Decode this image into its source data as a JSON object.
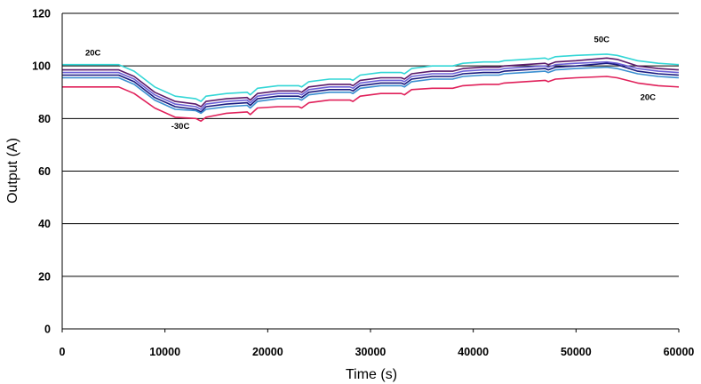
{
  "chart_data": {
    "type": "line",
    "title": "",
    "xlabel": "Time (s)",
    "ylabel": "Output (A)",
    "xlim": [
      0,
      60000
    ],
    "ylim": [
      0,
      120
    ],
    "x_ticks": [
      0,
      10000,
      20000,
      30000,
      40000,
      50000,
      60000
    ],
    "y_ticks": [
      0,
      20,
      40,
      60,
      80,
      100,
      120
    ],
    "grid": "horizontal",
    "legend": "none",
    "annotations": [
      {
        "text": "20C",
        "x": 3000,
        "y": 104
      },
      {
        "text": "-30C",
        "x": 11500,
        "y": 76
      },
      {
        "text": "50C",
        "x": 52500,
        "y": 109
      },
      {
        "text": "20C",
        "x": 57000,
        "y": 87
      }
    ],
    "series": [
      {
        "color": "#33d6d6",
        "points": [
          [
            0,
            100.5
          ],
          [
            5500,
            100.5
          ],
          [
            7000,
            98
          ],
          [
            9000,
            92
          ],
          [
            11000,
            88.5
          ],
          [
            13000,
            87.5
          ],
          [
            13500,
            86.5
          ],
          [
            14000,
            88.5
          ],
          [
            16000,
            89.5
          ],
          [
            18000,
            90
          ],
          [
            18300,
            89
          ],
          [
            19000,
            91.5
          ],
          [
            21000,
            92.5
          ],
          [
            23000,
            92.5
          ],
          [
            23300,
            92
          ],
          [
            24000,
            94
          ],
          [
            26000,
            95
          ],
          [
            28000,
            95
          ],
          [
            28300,
            94.5
          ],
          [
            29000,
            96.5
          ],
          [
            31000,
            97.5
          ],
          [
            33000,
            97.5
          ],
          [
            33300,
            97
          ],
          [
            34000,
            99
          ],
          [
            36000,
            100
          ],
          [
            38000,
            100
          ],
          [
            39000,
            101
          ],
          [
            41000,
            101.5
          ],
          [
            42500,
            101.5
          ],
          [
            43000,
            102
          ],
          [
            45000,
            102.5
          ],
          [
            47000,
            103
          ],
          [
            47300,
            102.5
          ],
          [
            48000,
            103.5
          ],
          [
            50000,
            104
          ],
          [
            53000,
            104.5
          ],
          [
            54000,
            104
          ],
          [
            56000,
            102
          ],
          [
            58000,
            101
          ],
          [
            60000,
            100.5
          ]
        ]
      },
      {
        "color": "#5a1a6a",
        "points": [
          [
            0,
            98.5
          ],
          [
            5500,
            98.5
          ],
          [
            7000,
            96
          ],
          [
            9000,
            90
          ],
          [
            11000,
            86.5
          ],
          [
            13000,
            85.5
          ],
          [
            13500,
            84.5
          ],
          [
            14000,
            86.5
          ],
          [
            16000,
            87.5
          ],
          [
            18000,
            88
          ],
          [
            18300,
            87
          ],
          [
            19000,
            89.5
          ],
          [
            21000,
            90.5
          ],
          [
            23000,
            90.5
          ],
          [
            23300,
            90
          ],
          [
            24000,
            92
          ],
          [
            26000,
            93
          ],
          [
            28000,
            93
          ],
          [
            28300,
            92.5
          ],
          [
            29000,
            94.5
          ],
          [
            31000,
            95.5
          ],
          [
            33000,
            95.5
          ],
          [
            33300,
            95
          ],
          [
            34000,
            97
          ],
          [
            36000,
            98
          ],
          [
            38000,
            98
          ],
          [
            39000,
            99
          ],
          [
            41000,
            99.5
          ],
          [
            42500,
            99.5
          ],
          [
            43000,
            100
          ],
          [
            45000,
            100.5
          ],
          [
            47000,
            101
          ],
          [
            47300,
            100.5
          ],
          [
            48000,
            101.5
          ],
          [
            50000,
            102
          ],
          [
            53000,
            103
          ],
          [
            54000,
            102.5
          ],
          [
            56000,
            100
          ],
          [
            58000,
            99
          ],
          [
            60000,
            98.5
          ]
        ]
      },
      {
        "color": "#6b5fd6",
        "points": [
          [
            0,
            97.5
          ],
          [
            5500,
            97.5
          ],
          [
            7000,
            95
          ],
          [
            9000,
            89
          ],
          [
            11000,
            85.5
          ],
          [
            13000,
            84.5
          ],
          [
            13500,
            83.5
          ],
          [
            14000,
            85.5
          ],
          [
            16000,
            86.5
          ],
          [
            18000,
            87
          ],
          [
            18300,
            86
          ],
          [
            19000,
            88.5
          ],
          [
            21000,
            89.5
          ],
          [
            23000,
            89.5
          ],
          [
            23300,
            89
          ],
          [
            24000,
            91
          ],
          [
            26000,
            92
          ],
          [
            28000,
            92
          ],
          [
            28300,
            91.5
          ],
          [
            29000,
            93.5
          ],
          [
            31000,
            94.5
          ],
          [
            33000,
            94.5
          ],
          [
            33300,
            94
          ],
          [
            34000,
            96
          ],
          [
            36000,
            97
          ],
          [
            38000,
            97
          ],
          [
            39000,
            98
          ],
          [
            41000,
            98.5
          ],
          [
            42500,
            98.5
          ],
          [
            43000,
            99
          ],
          [
            45000,
            99.5
          ],
          [
            47000,
            100
          ],
          [
            47300,
            99.5
          ],
          [
            48000,
            100.5
          ],
          [
            50000,
            101
          ],
          [
            53000,
            101.5
          ],
          [
            54000,
            101
          ],
          [
            56000,
            99
          ],
          [
            58000,
            98
          ],
          [
            60000,
            97.5
          ]
        ]
      },
      {
        "color": "#1a1a80",
        "points": [
          [
            0,
            96.5
          ],
          [
            5500,
            96.5
          ],
          [
            7000,
            94
          ],
          [
            9000,
            88
          ],
          [
            11000,
            84.5
          ],
          [
            13000,
            83.5
          ],
          [
            13500,
            82.5
          ],
          [
            14000,
            84.5
          ],
          [
            16000,
            85.5
          ],
          [
            18000,
            86
          ],
          [
            18300,
            85
          ],
          [
            19000,
            87.5
          ],
          [
            21000,
            88.5
          ],
          [
            23000,
            88.5
          ],
          [
            23300,
            88
          ],
          [
            24000,
            90
          ],
          [
            26000,
            91
          ],
          [
            28000,
            91
          ],
          [
            28300,
            90.5
          ],
          [
            29000,
            92.5
          ],
          [
            31000,
            93.5
          ],
          [
            33000,
            93.5
          ],
          [
            33300,
            93
          ],
          [
            34000,
            95
          ],
          [
            36000,
            96
          ],
          [
            38000,
            96
          ],
          [
            39000,
            97
          ],
          [
            41000,
            97.5
          ],
          [
            42500,
            97.5
          ],
          [
            43000,
            98
          ],
          [
            45000,
            98.5
          ],
          [
            47000,
            99
          ],
          [
            47300,
            98.5
          ],
          [
            48000,
            99.5
          ],
          [
            50000,
            100
          ],
          [
            53000,
            101
          ],
          [
            54000,
            100.5
          ],
          [
            56000,
            98
          ],
          [
            58000,
            97
          ],
          [
            60000,
            96.5
          ]
        ]
      },
      {
        "color": "#3a8ed0",
        "points": [
          [
            0,
            95.5
          ],
          [
            5500,
            95.5
          ],
          [
            7000,
            93
          ],
          [
            9000,
            87
          ],
          [
            11000,
            83.5
          ],
          [
            13000,
            83
          ],
          [
            13500,
            82
          ],
          [
            14000,
            83.5
          ],
          [
            16000,
            84.5
          ],
          [
            18000,
            85
          ],
          [
            18300,
            84
          ],
          [
            19000,
            86.5
          ],
          [
            21000,
            87.5
          ],
          [
            23000,
            87.5
          ],
          [
            23300,
            87
          ],
          [
            24000,
            89
          ],
          [
            26000,
            90
          ],
          [
            28000,
            90
          ],
          [
            28300,
            89.5
          ],
          [
            29000,
            91.5
          ],
          [
            31000,
            92.5
          ],
          [
            33000,
            92.5
          ],
          [
            33300,
            92
          ],
          [
            34000,
            94
          ],
          [
            36000,
            95
          ],
          [
            38000,
            95
          ],
          [
            39000,
            96
          ],
          [
            41000,
            96.5
          ],
          [
            42500,
            96.5
          ],
          [
            43000,
            97
          ],
          [
            45000,
            97.5
          ],
          [
            47000,
            98
          ],
          [
            47300,
            97.5
          ],
          [
            48000,
            98.5
          ],
          [
            50000,
            99
          ],
          [
            53000,
            99.5
          ],
          [
            54000,
            99
          ],
          [
            56000,
            97
          ],
          [
            58000,
            96
          ],
          [
            60000,
            95.5
          ]
        ]
      },
      {
        "color": "#e0205a",
        "points": [
          [
            0,
            92
          ],
          [
            5500,
            92
          ],
          [
            7000,
            89.5
          ],
          [
            9000,
            84
          ],
          [
            11000,
            80.5
          ],
          [
            13000,
            80
          ],
          [
            13500,
            79
          ],
          [
            14000,
            80.5
          ],
          [
            16000,
            82
          ],
          [
            18000,
            82.5
          ],
          [
            18300,
            81.5
          ],
          [
            19000,
            84
          ],
          [
            21000,
            84.5
          ],
          [
            23000,
            84.5
          ],
          [
            23300,
            84
          ],
          [
            24000,
            86
          ],
          [
            26000,
            87
          ],
          [
            28000,
            87
          ],
          [
            28300,
            86.5
          ],
          [
            29000,
            88.5
          ],
          [
            31000,
            89.5
          ],
          [
            33000,
            89.5
          ],
          [
            33300,
            89
          ],
          [
            34000,
            91
          ],
          [
            36000,
            91.5
          ],
          [
            38000,
            91.5
          ],
          [
            39000,
            92.5
          ],
          [
            41000,
            93
          ],
          [
            42500,
            93
          ],
          [
            43000,
            93.5
          ],
          [
            45000,
            94
          ],
          [
            47000,
            94.5
          ],
          [
            47300,
            94
          ],
          [
            48000,
            95
          ],
          [
            50000,
            95.5
          ],
          [
            53000,
            96
          ],
          [
            54000,
            95.5
          ],
          [
            56000,
            93.5
          ],
          [
            58000,
            92.5
          ],
          [
            60000,
            92
          ]
        ]
      }
    ]
  }
}
